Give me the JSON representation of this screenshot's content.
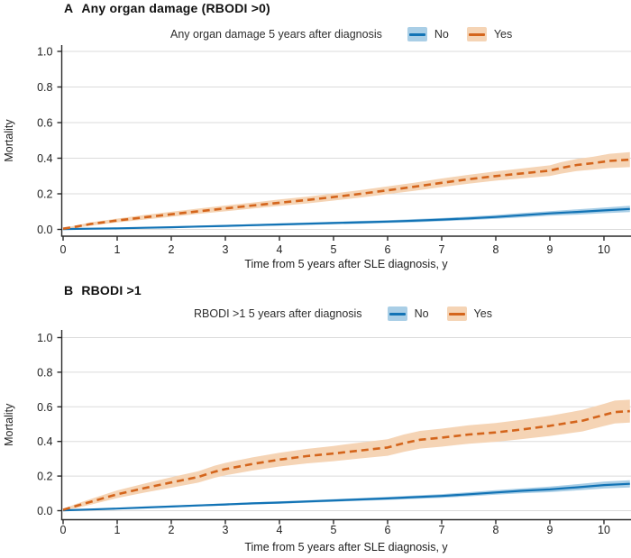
{
  "figure": {
    "background": "#ffffff",
    "grid_color": "#dbdbdb",
    "axis_color": "#2a2a2a",
    "text_color": "#212121"
  },
  "chart_data": [
    {
      "type": "line",
      "panel_label": "A",
      "title": "Any organ damage (RBODI >0)",
      "legend_title": "Any organ damage 5 years after diagnosis",
      "xlabel": "Time from 5 years after SLE diagnosis, y",
      "ylabel": "Mortality",
      "xlim": [
        0,
        10.5
      ],
      "ylim": [
        0,
        1.0
      ],
      "xticks": [
        0,
        1,
        2,
        3,
        4,
        5,
        6,
        7,
        8,
        9,
        10
      ],
      "xtick_labels": [
        "0",
        "1",
        "2",
        "3",
        "4",
        "5",
        "6",
        "7",
        "8",
        "9",
        "10"
      ],
      "yticks": [
        0,
        0.2,
        0.4,
        0.6,
        0.8,
        1.0
      ],
      "ytick_labels": [
        "0.0",
        "0.2",
        "0.4",
        "0.6",
        "0.8",
        "1.0"
      ],
      "grid": true,
      "legend_position": "top",
      "series": [
        {
          "name": "No",
          "style": "solid",
          "color": "#1273b5",
          "band_color": "#a9cee6",
          "x": [
            0,
            0.5,
            1,
            1.5,
            2,
            2.5,
            3,
            3.5,
            4,
            4.5,
            5,
            5.5,
            6,
            6.5,
            7,
            7.5,
            8,
            8.5,
            9,
            9.5,
            10,
            10.48
          ],
          "y": [
            0.002,
            0.004,
            0.006,
            0.009,
            0.012,
            0.016,
            0.02,
            0.024,
            0.028,
            0.032,
            0.036,
            0.04,
            0.044,
            0.049,
            0.055,
            0.062,
            0.07,
            0.08,
            0.09,
            0.098,
            0.107,
            0.115
          ],
          "ci": [
            0.002,
            0.003,
            0.003,
            0.004,
            0.004,
            0.005,
            0.005,
            0.006,
            0.006,
            0.007,
            0.007,
            0.008,
            0.008,
            0.009,
            0.009,
            0.01,
            0.011,
            0.012,
            0.013,
            0.015,
            0.016,
            0.018
          ]
        },
        {
          "name": "Yes",
          "style": "dashed",
          "color": "#d4651c",
          "band_color": "#f5d4b5",
          "x": [
            0,
            0.25,
            0.5,
            1,
            1.5,
            2,
            2.5,
            3,
            3.5,
            4,
            4.5,
            5,
            5.5,
            6,
            6.5,
            7,
            7.5,
            8,
            8.5,
            9,
            9.2,
            9.5,
            9.8,
            10.1,
            10.48
          ],
          "y": [
            0.004,
            0.016,
            0.03,
            0.05,
            0.068,
            0.085,
            0.102,
            0.118,
            0.134,
            0.15,
            0.165,
            0.182,
            0.2,
            0.22,
            0.24,
            0.262,
            0.282,
            0.3,
            0.315,
            0.33,
            0.345,
            0.362,
            0.372,
            0.385,
            0.392
          ],
          "ci": [
            0.004,
            0.007,
            0.009,
            0.011,
            0.013,
            0.014,
            0.015,
            0.016,
            0.017,
            0.018,
            0.019,
            0.02,
            0.021,
            0.022,
            0.023,
            0.024,
            0.025,
            0.026,
            0.028,
            0.03,
            0.032,
            0.034,
            0.036,
            0.04,
            0.042
          ]
        }
      ]
    },
    {
      "type": "line",
      "panel_label": "B",
      "title": "RBODI >1",
      "legend_title": "RBODI >1 5 years after diagnosis",
      "xlabel": "Time from 5 years after SLE diagnosis, y",
      "ylabel": "Mortality",
      "xlim": [
        0,
        10.5
      ],
      "ylim": [
        0,
        1.0
      ],
      "xticks": [
        0,
        1,
        2,
        3,
        4,
        5,
        6,
        7,
        8,
        9,
        10
      ],
      "xtick_labels": [
        "0",
        "1",
        "2",
        "3",
        "4",
        "5",
        "6",
        "7",
        "8",
        "9",
        "10"
      ],
      "yticks": [
        0,
        0.2,
        0.4,
        0.6,
        0.8,
        1.0
      ],
      "ytick_labels": [
        "0.0",
        "0.2",
        "0.4",
        "0.6",
        "0.8",
        "1.0"
      ],
      "grid": true,
      "legend_position": "top",
      "series": [
        {
          "name": "No",
          "style": "solid",
          "color": "#1273b5",
          "band_color": "#a9cee6",
          "x": [
            0,
            0.5,
            1,
            1.5,
            2,
            2.5,
            3,
            3.5,
            4,
            4.5,
            5,
            5.5,
            6,
            6.5,
            7,
            7.5,
            8,
            8.5,
            9,
            9.5,
            10,
            10.48
          ],
          "y": [
            0.002,
            0.007,
            0.012,
            0.018,
            0.024,
            0.03,
            0.036,
            0.042,
            0.047,
            0.053,
            0.059,
            0.065,
            0.071,
            0.078,
            0.085,
            0.095,
            0.105,
            0.115,
            0.123,
            0.135,
            0.148,
            0.155
          ],
          "ci": [
            0.002,
            0.003,
            0.004,
            0.004,
            0.005,
            0.005,
            0.006,
            0.006,
            0.007,
            0.007,
            0.008,
            0.008,
            0.009,
            0.01,
            0.011,
            0.012,
            0.013,
            0.014,
            0.016,
            0.018,
            0.02,
            0.021
          ]
        },
        {
          "name": "Yes",
          "style": "dashed",
          "color": "#d4651c",
          "band_color": "#f5d4b5",
          "x": [
            0,
            0.25,
            0.5,
            1,
            1.5,
            2,
            2.5,
            2.8,
            3,
            3.5,
            4,
            4.5,
            5,
            5.5,
            6,
            6.3,
            6.6,
            7,
            7.5,
            8,
            8.5,
            9,
            9.3,
            9.6,
            10,
            10.2,
            10.48
          ],
          "y": [
            0.005,
            0.028,
            0.05,
            0.095,
            0.13,
            0.163,
            0.195,
            0.225,
            0.24,
            0.27,
            0.295,
            0.315,
            0.33,
            0.348,
            0.365,
            0.39,
            0.41,
            0.422,
            0.44,
            0.452,
            0.47,
            0.49,
            0.505,
            0.52,
            0.553,
            0.57,
            0.575
          ],
          "ci": [
            0.005,
            0.012,
            0.016,
            0.022,
            0.026,
            0.03,
            0.033,
            0.035,
            0.036,
            0.038,
            0.04,
            0.042,
            0.044,
            0.046,
            0.048,
            0.05,
            0.051,
            0.052,
            0.053,
            0.054,
            0.056,
            0.058,
            0.06,
            0.062,
            0.064,
            0.066,
            0.066
          ]
        }
      ]
    }
  ]
}
